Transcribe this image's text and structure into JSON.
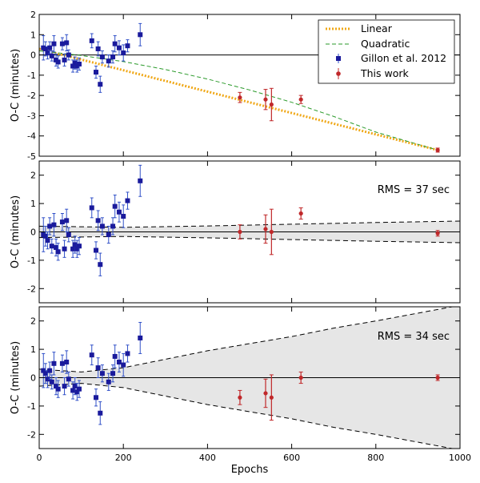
{
  "figure": {
    "xlabel": "Epochs",
    "xlim": [
      0,
      1000
    ],
    "xticks": [
      0,
      200,
      400,
      600,
      800,
      1000
    ],
    "xtick_labels": [
      "0",
      "200",
      "400",
      "600",
      "800",
      "1000"
    ]
  },
  "chart_data": [
    {
      "type": "scatter",
      "panel": "top",
      "ylabel": "O-C (minutes)",
      "ylim": [
        -5,
        2
      ],
      "yticks": [
        -5,
        -4,
        -3,
        -2,
        -1,
        0,
        1,
        2
      ],
      "ytick_labels": [
        "-5",
        "-4",
        "-3",
        "-2",
        "-1",
        "0",
        "1",
        "2"
      ],
      "zero_line": true,
      "legend": {
        "placement": "top-right",
        "entries": [
          "Linear",
          "Quadratic",
          "Gillon et al. 2012",
          "This work"
        ]
      },
      "colors": {
        "gillon": "#1a1a9c",
        "thiswork": "#c0282a",
        "linear": "#f0a818",
        "quadratic": "#2a9a2a",
        "errbar_blue": "#3050c8"
      },
      "series": [
        {
          "name": "Gillon et al. 2012",
          "marker": "square",
          "x": [
            10,
            15,
            20,
            25,
            30,
            35,
            40,
            45,
            55,
            60,
            65,
            70,
            80,
            85,
            90,
            95,
            125,
            135,
            140,
            145,
            150,
            165,
            175,
            180,
            190,
            200,
            210,
            240
          ],
          "y": [
            0.35,
            0.3,
            0.1,
            0.35,
            -0.05,
            0.55,
            -0.25,
            -0.35,
            0.55,
            -0.25,
            0.6,
            0.0,
            -0.55,
            -0.4,
            -0.55,
            -0.45,
            0.7,
            -0.85,
            0.3,
            -1.45,
            -0.1,
            -0.3,
            -0.1,
            0.55,
            0.35,
            0.1,
            0.45,
            1.0
          ],
          "yerr": [
            0.6,
            0.35,
            0.3,
            0.3,
            0.25,
            0.4,
            0.3,
            0.3,
            0.3,
            0.3,
            0.4,
            0.25,
            0.3,
            0.3,
            0.3,
            0.3,
            0.35,
            0.3,
            0.35,
            0.4,
            0.3,
            0.3,
            0.3,
            0.4,
            0.35,
            0.4,
            0.3,
            0.55
          ]
        },
        {
          "name": "This work",
          "marker": "circle",
          "x": [
            477,
            538,
            552,
            622,
            947
          ],
          "y": [
            -2.1,
            -2.2,
            -2.45,
            -2.2,
            -4.7
          ],
          "yerr": [
            0.25,
            0.5,
            0.8,
            0.2,
            0.1
          ]
        },
        {
          "name": "Linear",
          "style": "dotted",
          "x": [
            0,
            947
          ],
          "y": [
            0.3,
            -4.7
          ]
        },
        {
          "name": "Quadratic",
          "style": "dashed",
          "x": [
            0,
            100,
            200,
            300,
            400,
            500,
            600,
            700,
            800,
            947
          ],
          "y": [
            0.2,
            -0.03,
            -0.33,
            -0.72,
            -1.19,
            -1.73,
            -2.34,
            -3.04,
            -3.81,
            -4.7
          ]
        }
      ]
    },
    {
      "type": "scatter",
      "panel": "middle",
      "ylabel": "O-C (minutes)",
      "ylim": [
        -2.5,
        2.5
      ],
      "yticks": [
        -2,
        -1,
        0,
        1,
        2
      ],
      "ytick_labels": [
        "-2",
        "-1",
        "0",
        "1",
        "2"
      ],
      "zero_line": true,
      "annotation": "RMS = 37 sec",
      "envelope": {
        "x": [
          0,
          200,
          400,
          600,
          800,
          1000
        ],
        "upper": [
          0.2,
          0.16,
          0.21,
          0.27,
          0.33,
          0.38
        ],
        "lower": [
          -0.2,
          -0.16,
          -0.21,
          -0.27,
          -0.33,
          -0.38
        ]
      },
      "series": [
        {
          "name": "Gillon et al. 2012",
          "marker": "square",
          "x": [
            10,
            15,
            20,
            25,
            30,
            35,
            40,
            45,
            55,
            60,
            65,
            70,
            80,
            85,
            90,
            95,
            125,
            135,
            140,
            145,
            150,
            165,
            175,
            180,
            190,
            200,
            210,
            240
          ],
          "y": [
            -0.1,
            -0.15,
            -0.3,
            0.2,
            -0.5,
            0.25,
            -0.55,
            -0.7,
            0.35,
            -0.6,
            0.4,
            -0.1,
            -0.6,
            -0.45,
            -0.6,
            -0.5,
            0.85,
            -0.65,
            0.4,
            -1.15,
            0.2,
            -0.1,
            0.2,
            0.9,
            0.7,
            0.55,
            1.1,
            1.8
          ]
        },
        {
          "name": "This work",
          "marker": "circle",
          "x": [
            477,
            538,
            552,
            622,
            947
          ],
          "y": [
            0.0,
            0.1,
            0.0,
            0.65,
            -0.05
          ],
          "yerr": [
            0.25,
            0.5,
            0.8,
            0.2,
            0.1
          ]
        }
      ]
    },
    {
      "type": "scatter",
      "panel": "bottom",
      "ylabel": "O-C (minutes)",
      "ylim": [
        -2.5,
        2.5
      ],
      "yticks": [
        -2,
        -1,
        0,
        1,
        2
      ],
      "ytick_labels": [
        "-2",
        "-1",
        "0",
        "1",
        "2"
      ],
      "zero_line": true,
      "annotation": "RMS = 34 sec",
      "envelope": {
        "x": [
          0,
          100,
          200,
          300,
          400,
          500,
          600,
          700,
          800,
          1000
        ],
        "upper": [
          0.3,
          0.2,
          0.35,
          0.65,
          0.95,
          1.2,
          1.45,
          1.75,
          2.0,
          2.55
        ],
        "lower": [
          -0.3,
          -0.2,
          -0.35,
          -0.65,
          -0.95,
          -1.2,
          -1.45,
          -1.75,
          -2.0,
          -2.55
        ]
      },
      "series": [
        {
          "name": "Gillon et al. 2012",
          "marker": "square",
          "x": [
            10,
            15,
            20,
            25,
            30,
            35,
            40,
            45,
            55,
            60,
            65,
            70,
            80,
            85,
            90,
            95,
            125,
            135,
            140,
            145,
            150,
            165,
            175,
            180,
            190,
            200,
            210,
            240
          ],
          "y": [
            0.25,
            0.15,
            -0.05,
            0.25,
            -0.15,
            0.5,
            -0.3,
            -0.4,
            0.5,
            -0.3,
            0.55,
            -0.05,
            -0.45,
            -0.3,
            -0.5,
            -0.4,
            0.8,
            -0.7,
            0.35,
            -1.25,
            0.15,
            -0.15,
            0.15,
            0.75,
            0.55,
            0.45,
            0.85,
            1.4
          ]
        },
        {
          "name": "This work",
          "marker": "circle",
          "x": [
            477,
            538,
            552,
            622,
            947
          ],
          "y": [
            -0.7,
            -0.55,
            -0.7,
            0.0,
            0.0
          ],
          "yerr": [
            0.25,
            0.5,
            0.8,
            0.2,
            0.1
          ]
        }
      ]
    }
  ]
}
